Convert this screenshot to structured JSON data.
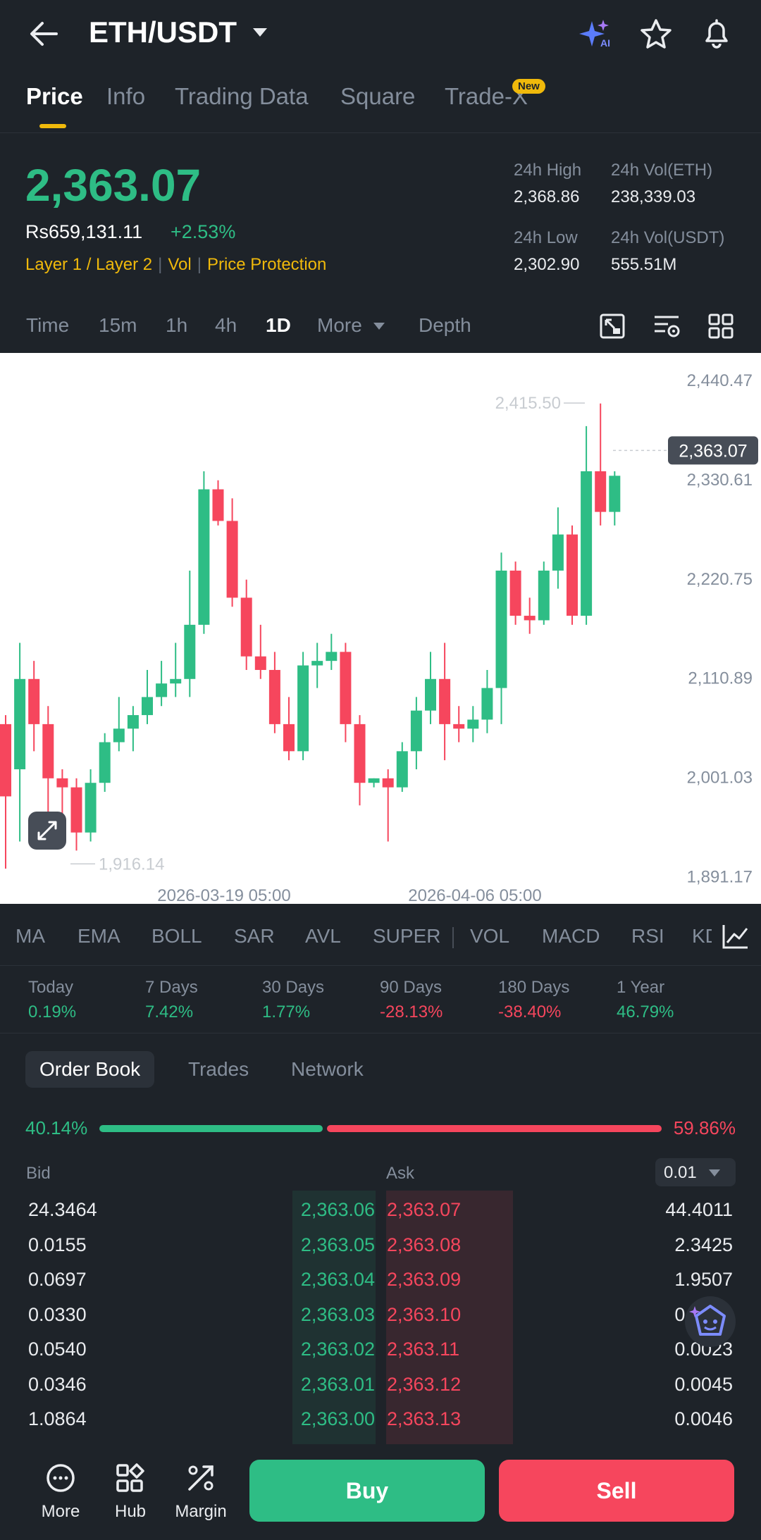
{
  "header": {
    "title": "ETH/USDT"
  },
  "tabs": [
    {
      "label": "Price"
    },
    {
      "label": "Info"
    },
    {
      "label": "Trading Data"
    },
    {
      "label": "Square"
    },
    {
      "label": "Trade-X"
    }
  ],
  "tab_badge": "New",
  "ticker": {
    "last_price": "2,363.07",
    "fiat_price": "Rs659,131.11",
    "change_pct": "+2.53%",
    "tags": [
      "Layer 1 / Layer 2",
      "Vol",
      "Price Protection"
    ],
    "stats": [
      {
        "label": "24h High",
        "value": "2,368.86"
      },
      {
        "label": "24h Vol(ETH)",
        "value": "238,339.03"
      },
      {
        "label": "24h Low",
        "value": "2,302.90"
      },
      {
        "label": "24h Vol(USDT)",
        "value": "555.51M"
      }
    ]
  },
  "timeframes": [
    "Time",
    "15m",
    "1h",
    "4h",
    "1D",
    "More",
    "Depth"
  ],
  "chart_data": {
    "type": "candlestick",
    "ylim": [
      1861,
      2471
    ],
    "y_ticks": [
      "2,440.47",
      "2,330.61",
      "2,220.75",
      "2,110.89",
      "2,001.03",
      "1,891.17"
    ],
    "x_ticks": [
      "2026-03-19 05:00",
      "2026-04-06 05:00"
    ],
    "last_price_label": "2,363.07",
    "high_label": "2,415.50",
    "low_label": "1,916.14",
    "candles": [
      {
        "o": 2060,
        "h": 2070,
        "l": 1900,
        "c": 1980
      },
      {
        "o": 2010,
        "h": 2150,
        "l": 1930,
        "c": 2110
      },
      {
        "o": 2110,
        "h": 2130,
        "l": 2030,
        "c": 2060
      },
      {
        "o": 2060,
        "h": 2080,
        "l": 1960,
        "c": 2000
      },
      {
        "o": 2000,
        "h": 2010,
        "l": 1940,
        "c": 1990
      },
      {
        "o": 1990,
        "h": 2000,
        "l": 1920,
        "c": 1940
      },
      {
        "o": 1940,
        "h": 2010,
        "l": 1930,
        "c": 1995
      },
      {
        "o": 1995,
        "h": 2050,
        "l": 1985,
        "c": 2040
      },
      {
        "o": 2040,
        "h": 2090,
        "l": 2030,
        "c": 2055
      },
      {
        "o": 2055,
        "h": 2080,
        "l": 2030,
        "c": 2070
      },
      {
        "o": 2070,
        "h": 2120,
        "l": 2060,
        "c": 2090
      },
      {
        "o": 2090,
        "h": 2130,
        "l": 2080,
        "c": 2105
      },
      {
        "o": 2105,
        "h": 2150,
        "l": 2090,
        "c": 2110
      },
      {
        "o": 2110,
        "h": 2230,
        "l": 2090,
        "c": 2170
      },
      {
        "o": 2170,
        "h": 2340,
        "l": 2160,
        "c": 2320
      },
      {
        "o": 2320,
        "h": 2330,
        "l": 2280,
        "c": 2285
      },
      {
        "o": 2285,
        "h": 2310,
        "l": 2190,
        "c": 2200
      },
      {
        "o": 2200,
        "h": 2220,
        "l": 2120,
        "c": 2135
      },
      {
        "o": 2135,
        "h": 2170,
        "l": 2110,
        "c": 2120
      },
      {
        "o": 2120,
        "h": 2140,
        "l": 2050,
        "c": 2060
      },
      {
        "o": 2060,
        "h": 2090,
        "l": 2020,
        "c": 2030
      },
      {
        "o": 2030,
        "h": 2140,
        "l": 2020,
        "c": 2125
      },
      {
        "o": 2125,
        "h": 2150,
        "l": 2100,
        "c": 2130
      },
      {
        "o": 2130,
        "h": 2160,
        "l": 2120,
        "c": 2140
      },
      {
        "o": 2140,
        "h": 2150,
        "l": 2040,
        "c": 2060
      },
      {
        "o": 2060,
        "h": 2070,
        "l": 1970,
        "c": 1995
      },
      {
        "o": 1995,
        "h": 2000,
        "l": 1990,
        "c": 2000
      },
      {
        "o": 2000,
        "h": 2010,
        "l": 1930,
        "c": 1990
      },
      {
        "o": 1990,
        "h": 2040,
        "l": 1985,
        "c": 2030
      },
      {
        "o": 2030,
        "h": 2090,
        "l": 2010,
        "c": 2075
      },
      {
        "o": 2075,
        "h": 2140,
        "l": 2060,
        "c": 2110
      },
      {
        "o": 2110,
        "h": 2150,
        "l": 2020,
        "c": 2060
      },
      {
        "o": 2060,
        "h": 2080,
        "l": 2040,
        "c": 2055
      },
      {
        "o": 2055,
        "h": 2080,
        "l": 2040,
        "c": 2065
      },
      {
        "o": 2065,
        "h": 2120,
        "l": 2050,
        "c": 2100
      },
      {
        "o": 2100,
        "h": 2250,
        "l": 2060,
        "c": 2230
      },
      {
        "o": 2230,
        "h": 2240,
        "l": 2170,
        "c": 2180
      },
      {
        "o": 2180,
        "h": 2200,
        "l": 2160,
        "c": 2175
      },
      {
        "o": 2175,
        "h": 2240,
        "l": 2170,
        "c": 2230
      },
      {
        "o": 2230,
        "h": 2300,
        "l": 2210,
        "c": 2270
      },
      {
        "o": 2270,
        "h": 2280,
        "l": 2170,
        "c": 2180
      },
      {
        "o": 2180,
        "h": 2390,
        "l": 2170,
        "c": 2340
      },
      {
        "o": 2340,
        "h": 2415,
        "l": 2280,
        "c": 2295
      },
      {
        "o": 2295,
        "h": 2340,
        "l": 2280,
        "c": 2335
      }
    ]
  },
  "indicators": [
    "MA",
    "EMA",
    "BOLL",
    "SAR",
    "AVL",
    "SUPER",
    "VOL",
    "MACD",
    "RSI",
    "KD"
  ],
  "performance": [
    {
      "label": "Today",
      "value": "0.19%"
    },
    {
      "label": "7 Days",
      "value": "7.42%"
    },
    {
      "label": "30 Days",
      "value": "1.77%"
    },
    {
      "label": "90 Days",
      "value": "-28.13%"
    },
    {
      "label": "180 Days",
      "value": "-38.40%"
    },
    {
      "label": "1 Year",
      "value": "46.79%"
    }
  ],
  "book_tabs": [
    "Order Book",
    "Trades",
    "Network"
  ],
  "ratio": {
    "bid_pct": "40.14%",
    "ask_pct": "59.86%",
    "bid": 40.14
  },
  "book_headers": {
    "bid": "Bid",
    "ask": "Ask",
    "precision": "0.01"
  },
  "order_book": [
    {
      "bid_qty": "24.3464",
      "bid_price": "2,363.06",
      "ask_price": "2,363.07",
      "ask_qty": "44.4011"
    },
    {
      "bid_qty": "0.0155",
      "bid_price": "2,363.05",
      "ask_price": "2,363.08",
      "ask_qty": "2.3425"
    },
    {
      "bid_qty": "0.0697",
      "bid_price": "2,363.04",
      "ask_price": "2,363.09",
      "ask_qty": "1.9507"
    },
    {
      "bid_qty": "0.0330",
      "bid_price": "2,363.03",
      "ask_price": "2,363.10",
      "ask_qty": "0.0023"
    },
    {
      "bid_qty": "0.0540",
      "bid_price": "2,363.02",
      "ask_price": "2,363.11",
      "ask_qty": "0.0023"
    },
    {
      "bid_qty": "0.0346",
      "bid_price": "2,363.01",
      "ask_price": "2,363.12",
      "ask_qty": "0.0045"
    },
    {
      "bid_qty": "1.0864",
      "bid_price": "2,363.00",
      "ask_price": "2,363.13",
      "ask_qty": "0.0046"
    }
  ],
  "bottom_nav": [
    {
      "label": "More"
    },
    {
      "label": "Hub"
    },
    {
      "label": "Margin"
    }
  ],
  "actions": {
    "buy": "Buy",
    "sell": "Sell"
  },
  "colors": {
    "green": "#2ebd85",
    "red": "#f6465d",
    "accent": "#f0b90b"
  }
}
